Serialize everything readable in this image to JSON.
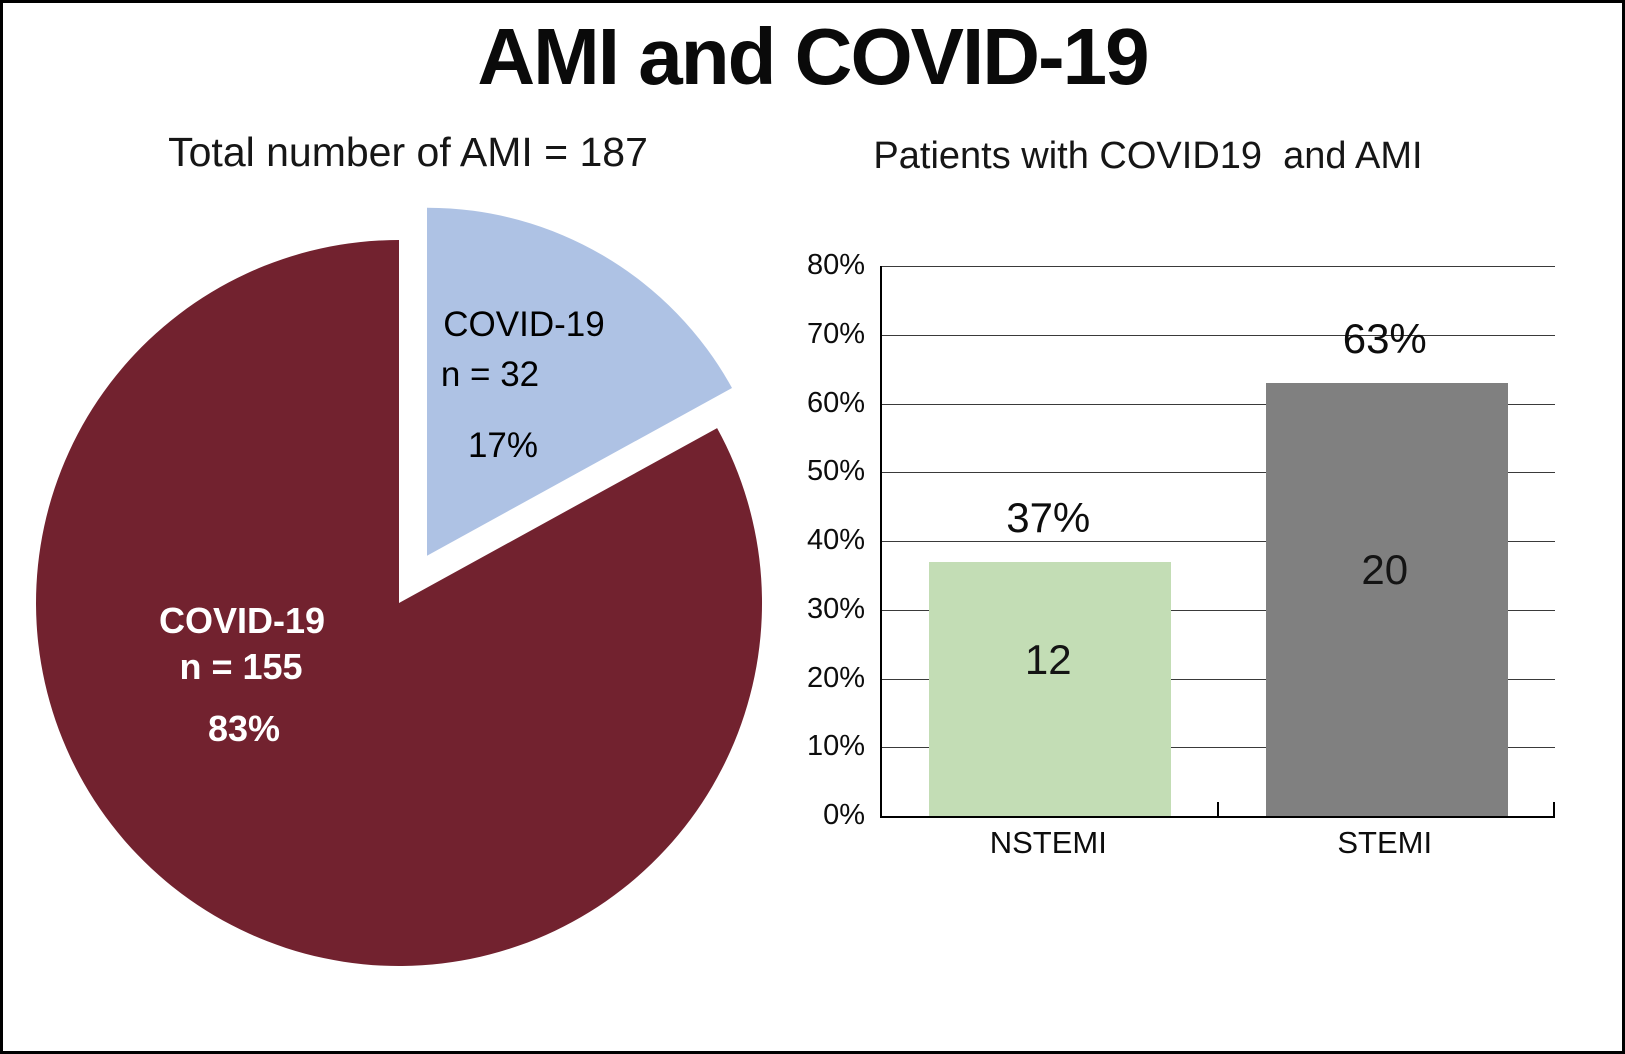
{
  "title": "AMI and COVID-19",
  "pie_panel": {
    "subtitle": "Total number of AMI = 187",
    "large_slice": {
      "line1": "COVID-19",
      "line2": "n = 155",
      "line3": "83%"
    },
    "small_slice": {
      "line1": "COVID-19",
      "line2": "n = 32",
      "line3": "17%"
    }
  },
  "bar_panel": {
    "subtitle": "Patients with COVID19  and AMI"
  },
  "colors": {
    "pie_large": "#72222F",
    "pie_small": "#AEC2E4",
    "bar_nstemi": "#C3DDB5",
    "bar_stemi": "#808080",
    "pie_large_text": "#FFFFFF",
    "pie_small_text": "#000000",
    "grid": "#3A3A3A",
    "text": "#111111"
  },
  "chart_data": [
    {
      "type": "pie",
      "title": "Total number of AMI = 187",
      "total": 187,
      "start_angle_deg": 0,
      "direction": "clockwise",
      "slices": [
        {
          "label": "COVID-19",
          "n": 32,
          "percent": 17,
          "color": "#AEC2E4",
          "text_color": "#000000",
          "exploded": true
        },
        {
          "label": "COVID-19",
          "n": 155,
          "percent": 83,
          "color": "#72222F",
          "text_color": "#FFFFFF",
          "exploded": false
        }
      ]
    },
    {
      "type": "bar",
      "title": "Patients with COVID19 and AMI",
      "categories": [
        "NSTEMI",
        "STEMI"
      ],
      "series": [
        {
          "name": "Patients with COVID19 and AMI",
          "values_percent": [
            37,
            63
          ],
          "counts": [
            12,
            20
          ]
        }
      ],
      "bar_colors": [
        "#C3DDB5",
        "#808080"
      ],
      "value_labels": [
        "37%",
        "63%"
      ],
      "count_labels": [
        "12",
        "20"
      ],
      "ytick_labels": [
        "0%",
        "10%",
        "20%",
        "30%",
        "40%",
        "50%",
        "60%",
        "70%",
        "80%"
      ],
      "ytick_values": [
        0,
        10,
        20,
        30,
        40,
        50,
        60,
        70,
        80
      ],
      "ylim_percent": [
        0,
        80
      ],
      "grid": true,
      "legend": "none",
      "xlabel": "",
      "ylabel": ""
    }
  ]
}
